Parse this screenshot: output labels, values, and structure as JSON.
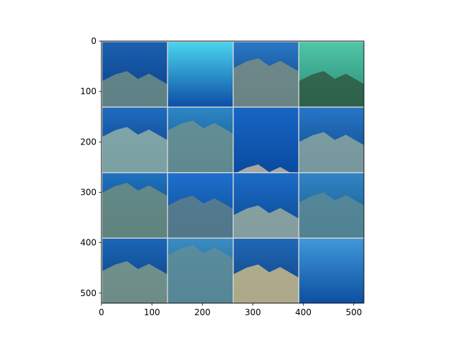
{
  "chart_data": {
    "type": "image-grid",
    "title": "",
    "xlabel": "",
    "ylabel": "",
    "xlim": [
      0,
      520
    ],
    "ylim": [
      520,
      0
    ],
    "xticks": [
      0,
      100,
      200,
      300,
      400,
      500
    ],
    "yticks": [
      0,
      100,
      200,
      300,
      400,
      500
    ],
    "grid": {
      "rows": 4,
      "cols": 4,
      "tile_size": 128,
      "padding": 2,
      "pad_color": "#d8d8d8"
    },
    "tiles": [
      {
        "row": 0,
        "col": 0,
        "name": "reef-rock-left",
        "colors": [
          "#1a5fb0",
          "#0c3f86"
        ],
        "rock": "#6e8d86",
        "rock_y": 0.45
      },
      {
        "row": 0,
        "col": 1,
        "name": "open-blue-with-diver",
        "colors": [
          "#4ad4ee",
          "#0d4ea6"
        ],
        "rock": null,
        "rock_y": 1.0
      },
      {
        "row": 0,
        "col": 2,
        "name": "rock-pillars",
        "colors": [
          "#2a78c6",
          "#0a3f7d"
        ],
        "rock": "#7b8e84",
        "rock_y": 0.25
      },
      {
        "row": 0,
        "col": 3,
        "name": "green-seabed",
        "colors": [
          "#4fc6a8",
          "#2b8a74"
        ],
        "rock": "#2f5a44",
        "rock_y": 0.45
      },
      {
        "row": 1,
        "col": 0,
        "name": "coral-pinnacle",
        "colors": [
          "#1f6cc0",
          "#0b3d80"
        ],
        "rock": "#8fb1a8",
        "rock_y": 0.3
      },
      {
        "row": 1,
        "col": 1,
        "name": "reef-wall",
        "colors": [
          "#2d86c6",
          "#10527e"
        ],
        "rock": "#6f9290",
        "rock_y": 0.2
      },
      {
        "row": 1,
        "col": 2,
        "name": "deep-blue-floor",
        "colors": [
          "#1766c4",
          "#0a4aa0"
        ],
        "rock": "#c4b7a0",
        "rock_y": 0.88
      },
      {
        "row": 1,
        "col": 3,
        "name": "boulder-mound",
        "colors": [
          "#2876c8",
          "#0c4686"
        ],
        "rock": "#8aa6a0",
        "rock_y": 0.38
      },
      {
        "row": 2,
        "col": 0,
        "name": "slope-rocks",
        "colors": [
          "#1f72c0",
          "#0c3d76"
        ],
        "rock": "#6f8f80",
        "rock_y": 0.15
      },
      {
        "row": 2,
        "col": 1,
        "name": "blue-right-wall",
        "colors": [
          "#1d70cc",
          "#0b4a96"
        ],
        "rock": "#5e7f88",
        "rock_y": 0.35
      },
      {
        "row": 2,
        "col": 2,
        "name": "twin-rocks",
        "colors": [
          "#1b6cc6",
          "#0b4791"
        ],
        "rock": "#9aaca0",
        "rock_y": 0.5
      },
      {
        "row": 2,
        "col": 3,
        "name": "hazy-reef",
        "colors": [
          "#3184c4",
          "#145a8c"
        ],
        "rock": "#5c8a94",
        "rock_y": 0.3
      },
      {
        "row": 3,
        "col": 0,
        "name": "reef-ledge",
        "colors": [
          "#1a66b8",
          "#0c3c78"
        ],
        "rock": "#7f9a8a",
        "rock_y": 0.35
      },
      {
        "row": 3,
        "col": 1,
        "name": "blurred-reef",
        "colors": [
          "#3a8cc2",
          "#1c5f8a"
        ],
        "rock": "#5f8d96",
        "rock_y": 0.1
      },
      {
        "row": 3,
        "col": 2,
        "name": "coral-head",
        "colors": [
          "#2068b8",
          "#0d3f7c"
        ],
        "rock": "#c8bb8a",
        "rock_y": 0.4
      },
      {
        "row": 3,
        "col": 3,
        "name": "open-blue-deep",
        "colors": [
          "#3f98d8",
          "#0d4fa0"
        ],
        "rock": null,
        "rock_y": 1.0
      }
    ]
  }
}
